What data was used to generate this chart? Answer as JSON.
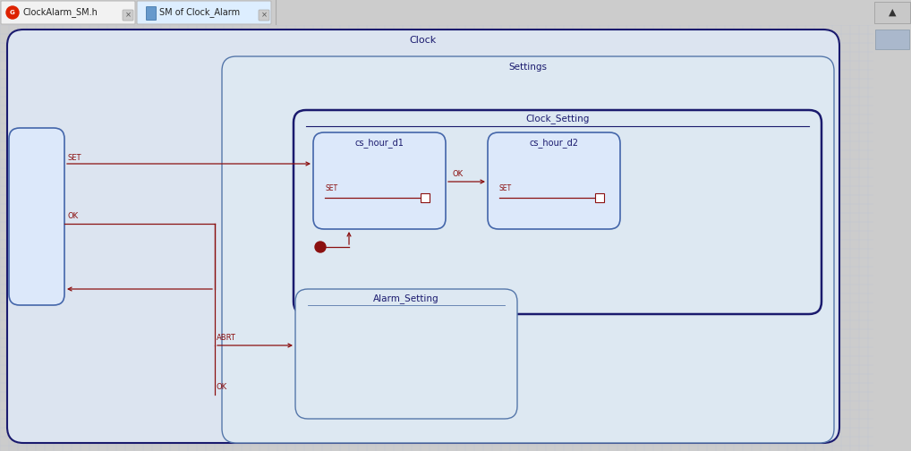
{
  "fig_width": 10.18,
  "fig_height": 5.04,
  "bg_color": "#cdd5e8",
  "grid_color": "#b8c2d8",
  "dark_navy": "#1a1a6e",
  "mid_blue": "#5577aa",
  "state_blue": "#4466aa",
  "arrow_color": "#8b1010",
  "label_dark": "#1a1a6e",
  "box_face": "#dde6f8",
  "tab1": "ClockAlarm_SM.h",
  "tab2": "SM of Clock_Alarm",
  "clock_label": "Clock",
  "settings_label": "Settings",
  "cs_label": "Clock_Setting",
  "d1_label": "cs_hour_d1",
  "d2_label": "cs_hour_d2",
  "alarm_label": "Alarm_Setting",
  "set_label": "SET",
  "ok_label": "OK",
  "abrt_label": "ABRT"
}
